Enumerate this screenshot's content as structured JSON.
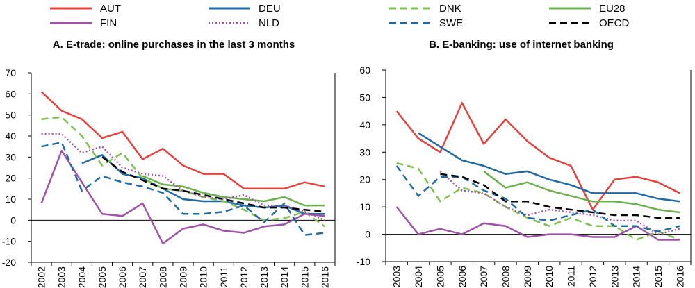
{
  "legend": {
    "items": [
      {
        "key": "AUT",
        "label": "AUT",
        "color": "#e8403a",
        "dash": "solid"
      },
      {
        "key": "DEU",
        "label": "DEU",
        "color": "#1f6aa5",
        "dash": "solid"
      },
      {
        "key": "DNK",
        "label": "DNK",
        "color": "#7cc24e",
        "dash": "dashed"
      },
      {
        "key": "EU28",
        "label": "EU28",
        "color": "#6ab04c",
        "dash": "solid"
      },
      {
        "key": "FIN",
        "label": "FIN",
        "color": "#a052a8",
        "dash": "solid"
      },
      {
        "key": "NLD",
        "label": "NLD",
        "color": "#a052a8",
        "dash": "dotted"
      },
      {
        "key": "SWE",
        "label": "SWE",
        "color": "#1f6aa5",
        "dash": "dashed"
      },
      {
        "key": "OECD",
        "label": "OECD",
        "color": "#000000",
        "dash": "dashed"
      }
    ]
  },
  "chart_data": [
    {
      "type": "line",
      "title": "A. E-trade: online purchases in the last 3 months",
      "ylim": [
        -20,
        70
      ],
      "yticks": [
        -20,
        -10,
        0,
        10,
        20,
        30,
        40,
        50,
        60,
        70
      ],
      "x": [
        "2002",
        "2003",
        "2004",
        "2005",
        "2006",
        "2007",
        "2008",
        "2009",
        "2010",
        "2011",
        "2012",
        "2013",
        "2014",
        "2015",
        "2016"
      ],
      "series": [
        {
          "name": "AUT",
          "values": [
            61,
            52,
            48,
            39,
            42,
            29,
            34,
            26,
            22,
            22,
            15,
            15,
            15,
            18,
            16
          ]
        },
        {
          "name": "DEU",
          "values": [
            null,
            null,
            27,
            31,
            22,
            20,
            15,
            10,
            9,
            9,
            7,
            6,
            7,
            3,
            3
          ]
        },
        {
          "name": "DNK",
          "values": [
            48,
            49,
            40,
            26,
            32,
            20,
            15,
            14,
            11,
            9,
            5,
            0,
            1,
            4,
            -3
          ]
        },
        {
          "name": "EU28",
          "values": [
            null,
            null,
            null,
            null,
            null,
            21,
            17,
            16,
            13,
            11,
            10,
            9,
            11,
            7,
            7
          ]
        },
        {
          "name": "FIN",
          "values": [
            8,
            33,
            18,
            3,
            2,
            8,
            -11,
            -4,
            -2,
            -5,
            -6,
            -3,
            -2,
            3,
            2
          ]
        },
        {
          "name": "NLD",
          "values": [
            41,
            41,
            32,
            35,
            25,
            22,
            21,
            14,
            11,
            10,
            12,
            7,
            7,
            4,
            0
          ]
        },
        {
          "name": "SWE",
          "values": [
            35,
            37,
            14,
            21,
            18,
            16,
            13,
            3,
            3,
            4,
            7,
            -1,
            8,
            -7,
            -6
          ]
        },
        {
          "name": "OECD",
          "values": [
            null,
            null,
            null,
            30,
            23,
            19,
            15,
            14,
            12,
            10,
            8,
            6,
            6,
            5,
            4
          ]
        }
      ]
    },
    {
      "type": "line",
      "title": "B. E-banking: use of internet banking",
      "ylim": [
        -10,
        60
      ],
      "yticks": [
        -10,
        0,
        10,
        20,
        30,
        40,
        50,
        60
      ],
      "x": [
        "2003",
        "2004",
        "2005",
        "2006",
        "2007",
        "2008",
        "2009",
        "2010",
        "2011",
        "2012",
        "2013",
        "2014",
        "2015",
        "2016"
      ],
      "series": [
        {
          "name": "AUT",
          "values": [
            45,
            35,
            30,
            48,
            33,
            42,
            34,
            28,
            25,
            9,
            20,
            21,
            19,
            15
          ]
        },
        {
          "name": "DEU",
          "values": [
            null,
            37,
            32,
            27,
            25,
            22,
            23,
            20,
            18,
            15,
            15,
            15,
            13,
            12
          ]
        },
        {
          "name": "DNK",
          "values": [
            26,
            24,
            12,
            17,
            15,
            10,
            6,
            3,
            6,
            3,
            3,
            -2,
            1,
            -2
          ]
        },
        {
          "name": "EU28",
          "values": [
            null,
            null,
            null,
            null,
            23,
            17,
            19,
            16,
            14,
            12,
            12,
            11,
            9,
            8
          ]
        },
        {
          "name": "FIN",
          "values": [
            10,
            0,
            2,
            0,
            4,
            3,
            -1,
            0,
            0,
            -1,
            -1,
            3,
            -2,
            -2
          ]
        },
        {
          "name": "NLD",
          "values": [
            null,
            null,
            23,
            16,
            15,
            10,
            7,
            9,
            8,
            7,
            5,
            5,
            0,
            2
          ]
        },
        {
          "name": "SWE",
          "values": [
            25,
            14,
            21,
            21,
            16,
            13,
            6,
            5,
            7,
            9,
            3,
            3,
            1,
            3
          ]
        },
        {
          "name": "OECD",
          "values": [
            null,
            null,
            22,
            21,
            18,
            12,
            12,
            10,
            9,
            8,
            7,
            7,
            6,
            6
          ]
        }
      ]
    }
  ]
}
